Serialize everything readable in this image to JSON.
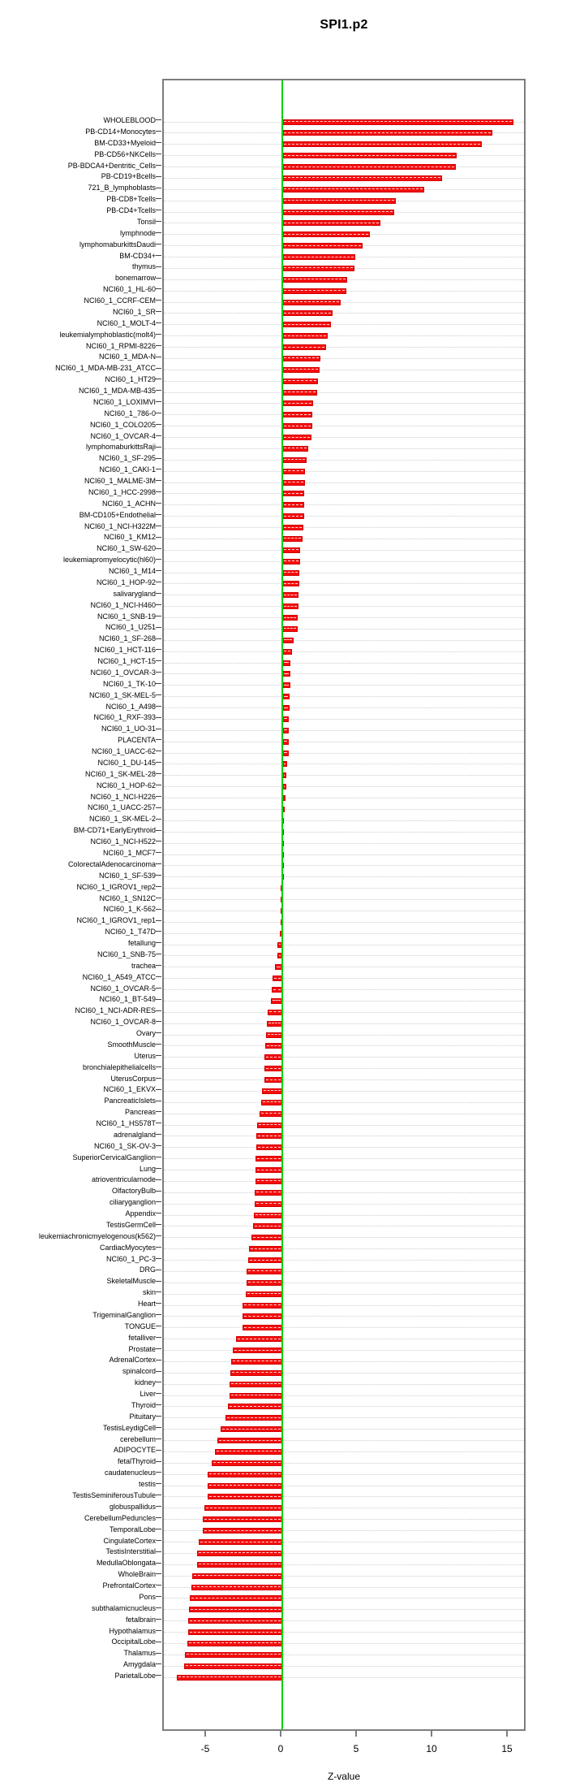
{
  "title": "SPI1.p2",
  "xaxis": {
    "label": "Z-value"
  },
  "chart_data": {
    "type": "bar",
    "orientation": "horizontal",
    "title": "SPI1.p2",
    "xlabel": "Z-value",
    "ylabel": "",
    "x_ticks": [
      -5,
      0,
      5,
      10,
      15
    ],
    "xlim": [
      -7.9,
      16.2
    ],
    "grid": "dotted-row-lines",
    "legend": "none",
    "bar_color": "#f50d0d",
    "zero_line_color": "#00d300",
    "categories": [
      "WHOLEBLOOD",
      "PB-CD14+Monocytes",
      "BM-CD33+Myeloid",
      "PB-CD56+NKCells",
      "PB-BDCA4+Dentritic_Cells",
      "PB-CD19+Bcells",
      "721_B_lymphoblasts",
      "PB-CD8+Tcells",
      "PB-CD4+Tcells",
      "Tonsil",
      "lymphnode",
      "lymphomaburkittsDaudi",
      "BM-CD34+",
      "thymus",
      "bonemarrow",
      "NCI60_1_HL-60",
      "NCI60_1_CCRF-CEM",
      "NCI60_1_SR",
      "NCI60_1_MOLT-4",
      "leukemialymphoblastic(molt4)",
      "NCI60_1_RPMI-8226",
      "NCI60_1_MDA-N",
      "NCI60_1_MDA-MB-231_ATCC",
      "NCI60_1_HT29",
      "NCI60_1_MDA-MB-435",
      "NCI60_1_LOXIMVI",
      "NCI60_1_786-0",
      "NCI60_1_COLO205",
      "NCI60_1_OVCAR-4",
      "lymphomaburkittsRaji",
      "NCI60_1_SF-295",
      "NCI60_1_CAKI-1",
      "NCI60_1_MALME-3M",
      "NCI60_1_HCC-2998",
      "NCI60_1_ACHN",
      "BM-CD105+Endothelial",
      "NCI60_1_NCI-H322M",
      "NCI60_1_KM12",
      "NCI60_1_SW-620",
      "leukemiapromyelocytic(hl60)",
      "NCI60_1_M14",
      "NCI60_1_HOP-92",
      "salivarygland",
      "NCI60_1_NCI-H460",
      "NCI60_1_SNB-19",
      "NCI60_1_U251",
      "NCI60_1_SF-268",
      "NCI60_1_HCT-116",
      "NCI60_1_HCT-15",
      "NCI60_1_OVCAR-3",
      "NCI60_1_TK-10",
      "NCI60_1_SK-MEL-5",
      "NCI60_1_A498",
      "NCI60_1_RXF-393",
      "NCI60_1_UO-31",
      "PLACENTA",
      "NCI60_1_UACC-62",
      "NCI60_1_DU-145",
      "NCI60_1_SK-MEL-28",
      "NCI60_1_HOP-62",
      "NCI60_1_NCI-H226",
      "NCI60_1_UACC-257",
      "NCI60_1_SK-MEL-2",
      "BM-CD71+EarlyErythroid",
      "NCI60_1_NCI-H522",
      "NCI60_1_MCF7",
      "ColorectalAdenocarcinoma",
      "NCI60_1_SF-539",
      "NCI60_1_IGROV1_rep2",
      "NCI60_1_SN12C",
      "NCI60_1_K-562",
      "NCI60_1_IGROV1_rep1",
      "NCI60_1_T47D",
      "fetallung",
      "NCI60_1_SNB-75",
      "trachea",
      "NCI60_1_A549_ATCC",
      "NCI60_1_OVCAR-5",
      "NCI60_1_BT-549",
      "NCI60_1_NCI-ADR-RES",
      "NCI60_1_OVCAR-8",
      "Ovary",
      "SmoothMuscle",
      "Uterus",
      "bronchialepithelialcells",
      "UterusCorpus",
      "NCI60_1_EKVX",
      "PancreaticIslets",
      "Pancreas",
      "NCI60_1_HS578T",
      "adrenalgland",
      "NCI60_1_SK-OV-3",
      "SuperiorCervicalGanglion",
      "Lung",
      "atrioventricularnode",
      "OlfactoryBulb",
      "ciliaryganglion",
      "Appendix",
      "TestisGermCell",
      "leukemiachronicmyelogenous(k562)",
      "CardiacMyocytes",
      "NCI60_1_PC-3",
      "DRG",
      "SkeletalMuscle",
      "skin",
      "Heart",
      "TrigeminalGanglion",
      "TONGUE",
      "fetalliver",
      "Prostate",
      "AdrenalCortex",
      "spinalcord",
      "kidney",
      "Liver",
      "Thyroid",
      "Pituitary",
      "TestisLeydigCell",
      "cerebellum",
      "ADIPOCYTE",
      "fetalThyroid",
      "caudatenucleus",
      "testis",
      "TestisSeminiferousTubule",
      "globuspallidus",
      "CerebellumPeduncles",
      "TemporalLobe",
      "CingulateCortex",
      "TestisInterstitial",
      "MedullaOblongata",
      "WholeBrain",
      "PrefrontalCortex",
      "Pons",
      "subthalamicnucleus",
      "fetalbrain",
      "Hypothalamus",
      "OccipitalLobe",
      "Thalamus",
      "Amygdala",
      "ParietalLobe"
    ],
    "values": [
      15.3,
      13.9,
      13.2,
      11.55,
      11.5,
      10.6,
      9.4,
      7.5,
      7.4,
      6.5,
      5.8,
      5.3,
      4.85,
      4.8,
      4.3,
      4.25,
      3.85,
      3.35,
      3.2,
      3.0,
      2.9,
      2.5,
      2.45,
      2.35,
      2.3,
      2.05,
      2.0,
      2.0,
      1.95,
      1.7,
      1.6,
      1.52,
      1.5,
      1.47,
      1.45,
      1.44,
      1.4,
      1.36,
      1.2,
      1.16,
      1.15,
      1.12,
      1.1,
      1.06,
      1.04,
      1.0,
      0.75,
      0.65,
      0.55,
      0.54,
      0.52,
      0.49,
      0.47,
      0.45,
      0.44,
      0.43,
      0.42,
      0.32,
      0.29,
      0.28,
      0.19,
      0.18,
      0.13,
      0.12,
      0.11,
      0.1,
      0.04,
      0.02,
      -0.09,
      -0.1,
      -0.11,
      -0.13,
      -0.15,
      -0.32,
      -0.34,
      -0.5,
      -0.63,
      -0.72,
      -0.77,
      -0.98,
      -1.02,
      -1.05,
      -1.11,
      -1.16,
      -1.18,
      -1.2,
      -1.34,
      -1.4,
      -1.5,
      -1.68,
      -1.72,
      -1.74,
      -1.76,
      -1.78,
      -1.8,
      -1.83,
      -1.85,
      -1.9,
      -1.92,
      -2.05,
      -2.2,
      -2.25,
      -2.35,
      -2.38,
      -2.4,
      -2.62,
      -2.63,
      -2.65,
      -3.05,
      -3.3,
      -3.38,
      -3.46,
      -3.48,
      -3.5,
      -3.62,
      -3.76,
      -4.1,
      -4.32,
      -4.46,
      -4.66,
      -4.93,
      -4.95,
      -4.97,
      -5.16,
      -5.25,
      -5.27,
      -5.52,
      -5.63,
      -5.66,
      -5.95,
      -6.02,
      -6.13,
      -6.2,
      -6.25,
      -6.26,
      -6.29,
      -6.44,
      -6.51,
      -6.97
    ]
  }
}
